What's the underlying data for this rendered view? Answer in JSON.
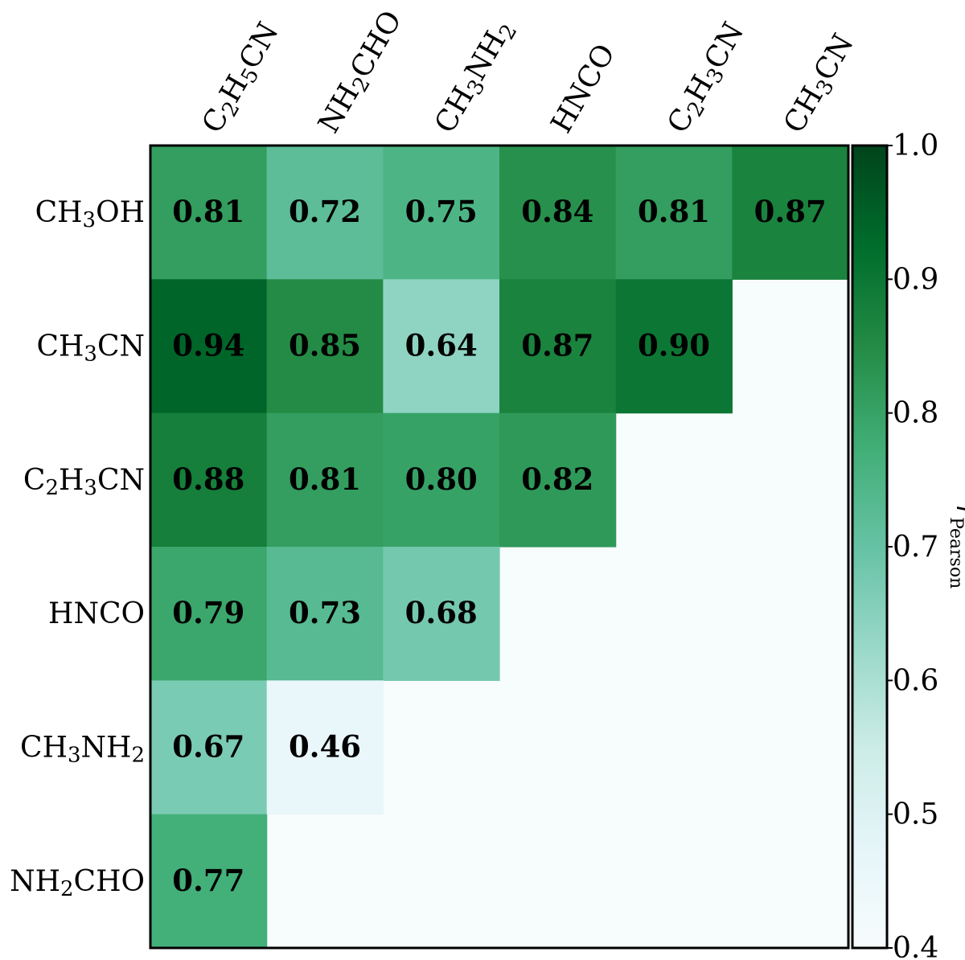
{
  "chart_data": {
    "type": "heatmap",
    "columns": [
      {
        "parts": [
          [
            "C",
            0
          ],
          [
            "2",
            -1
          ],
          [
            "H",
            0
          ],
          [
            "5",
            -1
          ],
          [
            "CN",
            0
          ]
        ]
      },
      {
        "parts": [
          [
            "NH",
            0
          ],
          [
            "2",
            -1
          ],
          [
            "CHO",
            0
          ]
        ]
      },
      {
        "parts": [
          [
            "CH",
            0
          ],
          [
            "3",
            -1
          ],
          [
            "NH",
            0
          ],
          [
            "2",
            -1
          ]
        ]
      },
      {
        "parts": [
          [
            "HNCO",
            0
          ]
        ]
      },
      {
        "parts": [
          [
            "C",
            0
          ],
          [
            "2",
            -1
          ],
          [
            "H",
            0
          ],
          [
            "3",
            -1
          ],
          [
            "CN",
            0
          ]
        ]
      },
      {
        "parts": [
          [
            "CH",
            0
          ],
          [
            "3",
            -1
          ],
          [
            "CN",
            0
          ]
        ]
      }
    ],
    "rows": [
      {
        "parts": [
          [
            "CH",
            0
          ],
          [
            "3",
            -1
          ],
          [
            "OH",
            0
          ]
        ]
      },
      {
        "parts": [
          [
            "CH",
            0
          ],
          [
            "3",
            -1
          ],
          [
            "CN",
            0
          ]
        ]
      },
      {
        "parts": [
          [
            "C",
            0
          ],
          [
            "2",
            -1
          ],
          [
            "H",
            0
          ],
          [
            "3",
            -1
          ],
          [
            "CN",
            0
          ]
        ]
      },
      {
        "parts": [
          [
            "HNCO",
            0
          ]
        ]
      },
      {
        "parts": [
          [
            "CH",
            0
          ],
          [
            "3",
            -1
          ],
          [
            "NH",
            0
          ],
          [
            "2",
            -1
          ]
        ]
      },
      {
        "parts": [
          [
            "NH",
            0
          ],
          [
            "2",
            -1
          ],
          [
            "CHO",
            0
          ]
        ]
      }
    ],
    "values": [
      [
        "0.81",
        "0.72",
        "0.75",
        "0.84",
        "0.81",
        "0.87"
      ],
      [
        "0.94",
        "0.85",
        "0.64",
        "0.87",
        "0.90",
        null
      ],
      [
        "0.88",
        "0.81",
        "0.80",
        "0.82",
        null,
        null
      ],
      [
        "0.79",
        "0.73",
        "0.68",
        null,
        null,
        null
      ],
      [
        "0.67",
        "0.46",
        null,
        null,
        null,
        null
      ],
      [
        "0.77",
        null,
        null,
        null,
        null,
        null
      ]
    ],
    "colorbar": {
      "label_main": "r",
      "label_sub": "Pearson",
      "range": [
        0.4,
        1.0
      ],
      "ticks": [
        "1.0",
        "0.9",
        "0.8",
        "0.7",
        "0.6",
        "0.5",
        "0.4"
      ]
    },
    "colormap": [
      "#f7fcfd",
      "#e5f5f9",
      "#ccece6",
      "#99d8c9",
      "#66c2a4",
      "#41ae76",
      "#238b45",
      "#006d2c",
      "#00441b"
    ],
    "empty_color": "#f7fcfd"
  }
}
